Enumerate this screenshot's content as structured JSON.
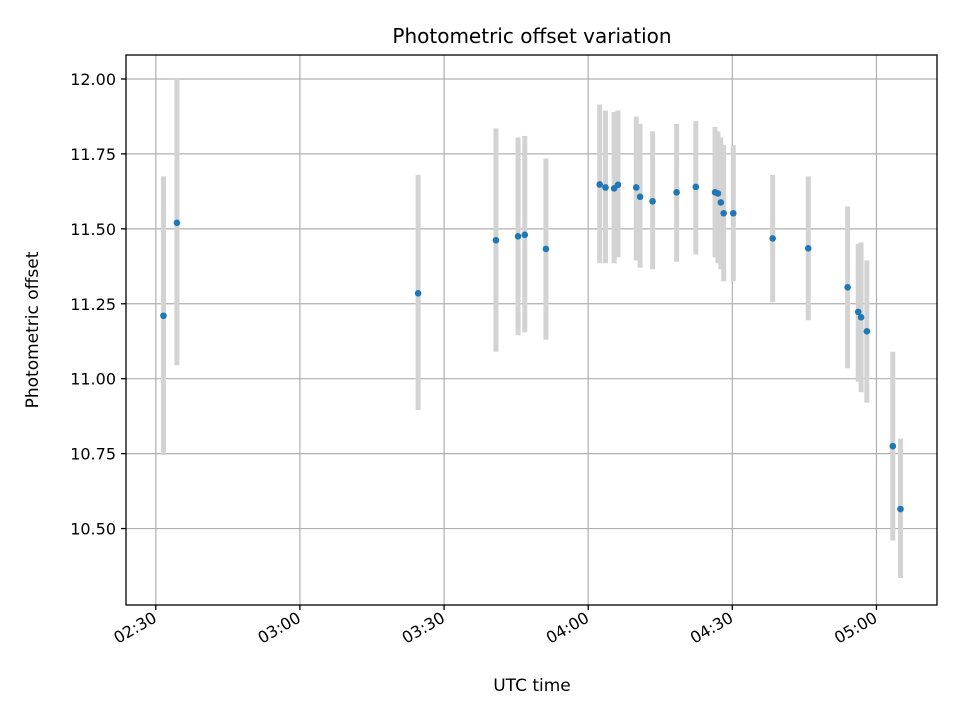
{
  "chart_data": {
    "type": "scatter",
    "title": "Photometric offset variation",
    "xlabel": "UTC time",
    "ylabel": "Photometric offset",
    "xlim": [
      "02:23:48",
      "05:12:36"
    ],
    "ylim": [
      10.245,
      12.08
    ],
    "x_ticks": [
      "02:30",
      "03:00",
      "03:30",
      "04:00",
      "04:30",
      "05:00"
    ],
    "y_ticks": [
      "10.50",
      "10.75",
      "11.00",
      "11.25",
      "11.50",
      "11.75",
      "12.00"
    ],
    "grid": true,
    "marker_color": "#1f77b4",
    "errorbar_color": "#d3d3d3",
    "series": [
      {
        "x": [
          "02:31:36",
          "02:34:24",
          "03:24:36",
          "03:40:48",
          "03:45:24",
          "03:46:48",
          "03:51:12",
          "04:02:24",
          "04:03:36",
          "04:05:24",
          "04:06:12",
          "04:10:00",
          "04:10:48",
          "04:13:24",
          "04:18:24",
          "04:22:24",
          "04:26:24",
          "04:27:00",
          "04:27:36",
          "04:28:12",
          "04:30:12",
          "04:38:24",
          "04:45:48",
          "04:54:00",
          "04:56:12",
          "04:56:48",
          "04:58:00",
          "05:03:24",
          "05:05:00"
        ],
        "y": [
          11.21,
          11.52,
          11.285,
          11.462,
          11.475,
          11.48,
          11.433,
          11.648,
          11.638,
          11.635,
          11.647,
          11.638,
          11.607,
          11.592,
          11.622,
          11.64,
          11.622,
          11.618,
          11.588,
          11.552,
          11.552,
          11.468,
          11.435,
          11.305,
          11.223,
          11.205,
          11.158,
          10.775,
          10.565
        ],
        "y_low": [
          10.745,
          11.045,
          10.895,
          11.09,
          11.145,
          11.155,
          11.13,
          11.385,
          11.385,
          11.385,
          11.405,
          11.395,
          11.37,
          11.365,
          11.39,
          11.415,
          11.405,
          11.385,
          11.365,
          11.325,
          11.325,
          11.255,
          11.195,
          11.035,
          10.99,
          10.955,
          10.92,
          10.46,
          10.335
        ],
        "y_high": [
          11.675,
          12.0,
          11.68,
          11.835,
          11.805,
          11.81,
          11.735,
          11.915,
          11.895,
          11.89,
          11.895,
          11.875,
          11.85,
          11.825,
          11.85,
          11.86,
          11.84,
          11.825,
          11.805,
          11.78,
          11.78,
          11.68,
          11.675,
          11.575,
          11.45,
          11.455,
          11.395,
          11.09,
          10.8
        ]
      }
    ]
  }
}
